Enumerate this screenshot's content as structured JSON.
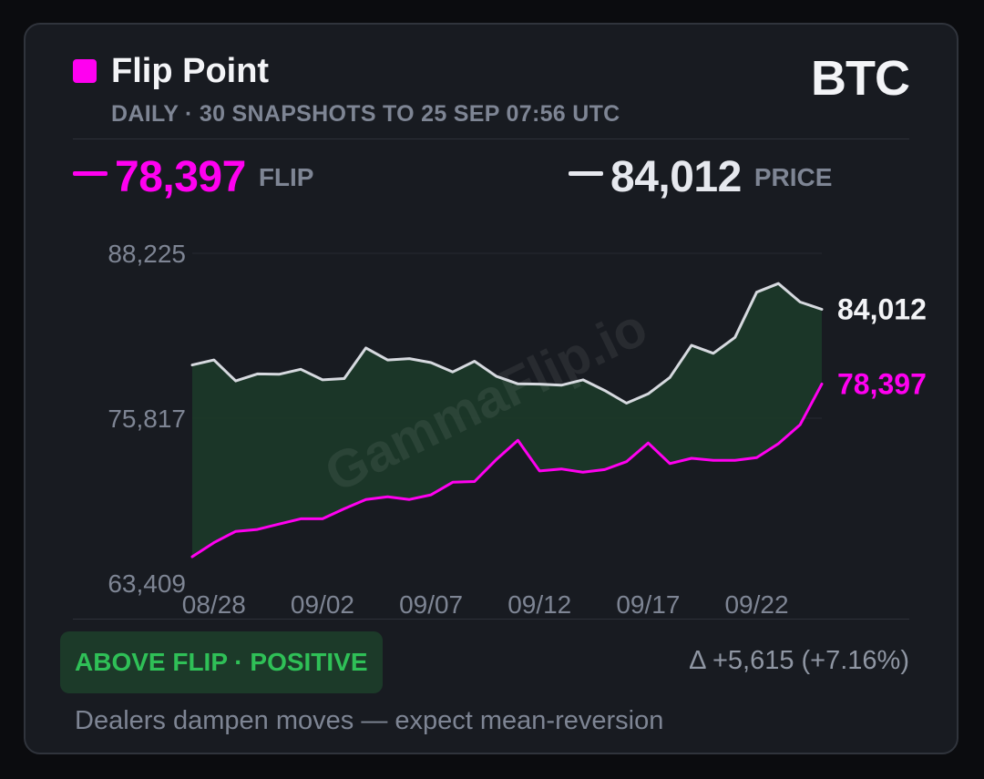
{
  "header": {
    "title": "Flip Point",
    "subtitle": "DAILY · 30 SNAPSHOTS TO 25 SEP 07:56 UTC",
    "symbol": "BTC"
  },
  "stats": {
    "flip_value": "78,397",
    "flip_label": "FLIP",
    "price_value": "84,012",
    "price_label": "PRICE"
  },
  "colors": {
    "flip": "#ff00f0",
    "price": "#e6e8ee",
    "fill": "#1c3a29",
    "positive": "#2fc057"
  },
  "watermark": "GammaFlip.io",
  "status": {
    "badge": "ABOVE FLIP · POSITIVE",
    "delta": "Δ +5,615 (+7.16%)",
    "note": "Dealers dampen moves — expect mean-reversion"
  },
  "chart_data": {
    "type": "line",
    "x": [
      "08/27",
      "08/28",
      "08/29",
      "08/30",
      "08/31",
      "09/01",
      "09/02",
      "09/03",
      "09/04",
      "09/05",
      "09/06",
      "09/07",
      "09/08",
      "09/09",
      "09/10",
      "09/11",
      "09/12",
      "09/13",
      "09/14",
      "09/15",
      "09/16",
      "09/17",
      "09/18",
      "09/19",
      "09/20",
      "09/21",
      "09/22",
      "09/23",
      "09/24",
      "09/25"
    ],
    "x_tick_labels": [
      "08/28",
      "09/02",
      "09/07",
      "09/12",
      "09/17",
      "09/22"
    ],
    "y_tick_labels": [
      "88,225",
      "75,817",
      "63,409"
    ],
    "ylim": [
      63409,
      88225
    ],
    "series": [
      {
        "key": "price",
        "values": [
          79820,
          80200,
          78620,
          79150,
          79120,
          79500,
          78700,
          78800,
          81100,
          80200,
          80300,
          80000,
          79300,
          80100,
          78980,
          78400,
          78380,
          78300,
          78700,
          77900,
          76950,
          77650,
          78880,
          81300,
          80700,
          81900,
          85300,
          85950,
          84560,
          84012
        ]
      },
      {
        "key": "flip",
        "values": [
          65400,
          66450,
          67300,
          67450,
          67850,
          68250,
          68250,
          69000,
          69700,
          69900,
          69700,
          70050,
          71000,
          71050,
          72700,
          74150,
          71850,
          72000,
          71750,
          71950,
          72550,
          73950,
          72400,
          72800,
          72650,
          72650,
          72850,
          73900,
          75330,
          78397
        ]
      }
    ],
    "last_labels": {
      "price": "84,012",
      "flip": "78,397"
    },
    "grid": true,
    "filled_between": true
  }
}
